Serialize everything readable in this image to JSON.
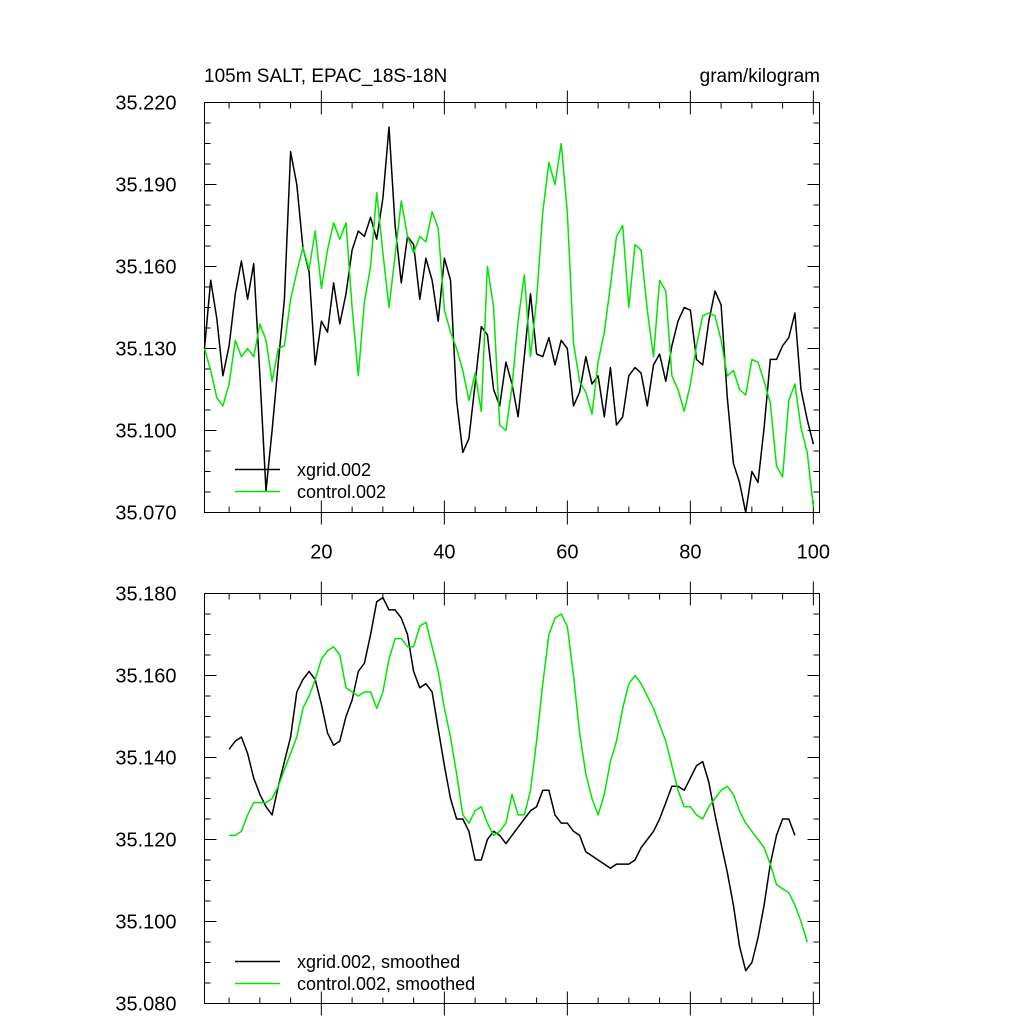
{
  "chart_data": [
    {
      "type": "line",
      "title": "105m SALT, EPAC_18S-18N",
      "units": "gram/kilogram",
      "xlim": [
        1,
        101
      ],
      "ylim": [
        35.07,
        35.22
      ],
      "yticks": [
        "35.070",
        "35.100",
        "35.130",
        "35.160",
        "35.190",
        "35.220"
      ],
      "xticks": [
        "20",
        "40",
        "60",
        "80",
        "100"
      ],
      "x_start": 1,
      "series": [
        {
          "name": "xgrid.002",
          "color": "#000000",
          "values": [
            35.13,
            35.155,
            35.141,
            35.12,
            35.131,
            35.15,
            35.162,
            35.148,
            35.161,
            35.12,
            35.078,
            35.1,
            35.125,
            35.148,
            35.202,
            35.19,
            35.167,
            35.158,
            35.124,
            35.14,
            35.136,
            35.154,
            35.139,
            35.15,
            35.166,
            35.173,
            35.171,
            35.178,
            35.17,
            35.185,
            35.211,
            35.175,
            35.154,
            35.171,
            35.168,
            35.148,
            35.163,
            35.155,
            35.14,
            35.163,
            35.155,
            35.111,
            35.092,
            35.097,
            35.117,
            35.138,
            35.135,
            35.115,
            35.109,
            35.125,
            35.117,
            35.105,
            35.127,
            35.15,
            35.128,
            35.127,
            35.134,
            35.124,
            35.133,
            35.13,
            35.109,
            35.114,
            35.127,
            35.117,
            35.12,
            35.105,
            35.123,
            35.102,
            35.105,
            35.12,
            35.123,
            35.121,
            35.109,
            35.124,
            35.128,
            35.118,
            35.131,
            35.14,
            35.145,
            35.144,
            35.126,
            35.124,
            35.14,
            35.151,
            35.146,
            35.112,
            35.088,
            35.081,
            35.07,
            35.085,
            35.081,
            35.101,
            35.126,
            35.126,
            35.131,
            35.134,
            35.143,
            35.115,
            35.104,
            35.095
          ]
        },
        {
          "name": "control.002",
          "color": "#00e600",
          "values": [
            35.13,
            35.122,
            35.112,
            35.109,
            35.117,
            35.133,
            35.127,
            35.13,
            35.127,
            35.139,
            35.133,
            35.118,
            35.13,
            35.131,
            35.148,
            35.158,
            35.167,
            35.159,
            35.173,
            35.152,
            35.166,
            35.176,
            35.17,
            35.176,
            35.145,
            35.12,
            35.147,
            35.16,
            35.187,
            35.165,
            35.145,
            35.164,
            35.184,
            35.171,
            35.165,
            35.171,
            35.169,
            35.18,
            35.174,
            35.144,
            35.136,
            35.13,
            35.122,
            35.111,
            35.121,
            35.107,
            35.16,
            35.145,
            35.102,
            35.1,
            35.116,
            35.14,
            35.157,
            35.127,
            35.148,
            35.18,
            35.198,
            35.19,
            35.205,
            35.18,
            35.132,
            35.118,
            35.114,
            35.106,
            35.125,
            35.136,
            35.153,
            35.171,
            35.175,
            35.145,
            35.168,
            35.166,
            35.144,
            35.127,
            35.155,
            35.151,
            35.12,
            35.115,
            35.107,
            35.117,
            35.131,
            35.142,
            35.143,
            35.142,
            35.133,
            35.12,
            35.122,
            35.115,
            35.113,
            35.126,
            35.125,
            35.118,
            35.11,
            35.087,
            35.083,
            35.111,
            35.117,
            35.101,
            35.092,
            35.072
          ]
        }
      ]
    },
    {
      "type": "line",
      "xlim": [
        1,
        101
      ],
      "ylim": [
        35.08,
        35.18
      ],
      "yticks": [
        "35.080",
        "35.100",
        "35.120",
        "35.140",
        "35.160",
        "35.180"
      ],
      "x_start": 5,
      "series": [
        {
          "name": "xgrid.002, smoothed",
          "color": "#000000",
          "values": [
            35.142,
            35.144,
            35.145,
            35.141,
            35.135,
            35.131,
            35.128,
            35.126,
            35.133,
            35.139,
            35.145,
            35.156,
            35.159,
            35.161,
            35.159,
            35.153,
            35.146,
            35.143,
            35.144,
            35.15,
            35.154,
            35.161,
            35.163,
            35.17,
            35.178,
            35.179,
            35.176,
            35.176,
            35.174,
            35.17,
            35.161,
            35.157,
            35.158,
            35.156,
            35.147,
            35.138,
            35.13,
            35.125,
            35.125,
            35.122,
            35.115,
            35.115,
            35.12,
            35.122,
            35.121,
            35.119,
            35.121,
            35.123,
            35.125,
            35.127,
            35.128,
            35.132,
            35.132,
            35.126,
            35.124,
            35.124,
            35.122,
            35.121,
            35.117,
            35.116,
            35.115,
            35.114,
            35.113,
            35.114,
            35.114,
            35.114,
            35.115,
            35.118,
            35.12,
            35.122,
            35.125,
            35.129,
            35.133,
            35.133,
            35.132,
            35.135,
            35.138,
            35.139,
            35.134,
            35.126,
            35.119,
            35.112,
            35.104,
            35.094,
            35.088,
            35.09,
            35.096,
            35.104,
            35.114,
            35.121,
            35.125,
            35.125,
            35.121
          ]
        },
        {
          "name": "control.002, smoothed",
          "color": "#00e600",
          "values": [
            35.121,
            35.121,
            35.122,
            35.126,
            35.129,
            35.129,
            35.129,
            35.13,
            35.133,
            35.137,
            35.141,
            35.145,
            35.152,
            35.155,
            35.159,
            35.164,
            35.166,
            35.167,
            35.165,
            35.157,
            35.156,
            35.155,
            35.156,
            35.156,
            35.152,
            35.156,
            35.164,
            35.169,
            35.169,
            35.167,
            35.167,
            35.172,
            35.173,
            35.167,
            35.161,
            35.152,
            35.145,
            35.136,
            35.126,
            35.124,
            35.127,
            35.128,
            35.124,
            35.121,
            35.122,
            35.124,
            35.131,
            35.126,
            35.126,
            35.132,
            35.144,
            35.158,
            35.17,
            35.174,
            35.175,
            35.172,
            35.16,
            35.146,
            35.136,
            35.13,
            35.126,
            35.131,
            35.139,
            35.144,
            35.152,
            35.158,
            35.16,
            35.158,
            35.155,
            35.152,
            35.148,
            35.144,
            35.138,
            35.132,
            35.128,
            35.128,
            35.126,
            35.125,
            35.128,
            35.13,
            35.132,
            35.133,
            35.131,
            35.127,
            35.124,
            35.122,
            35.12,
            35.118,
            35.114,
            35.109,
            35.108,
            35.107,
            35.104,
            35.1,
            35.095
          ]
        }
      ]
    }
  ]
}
